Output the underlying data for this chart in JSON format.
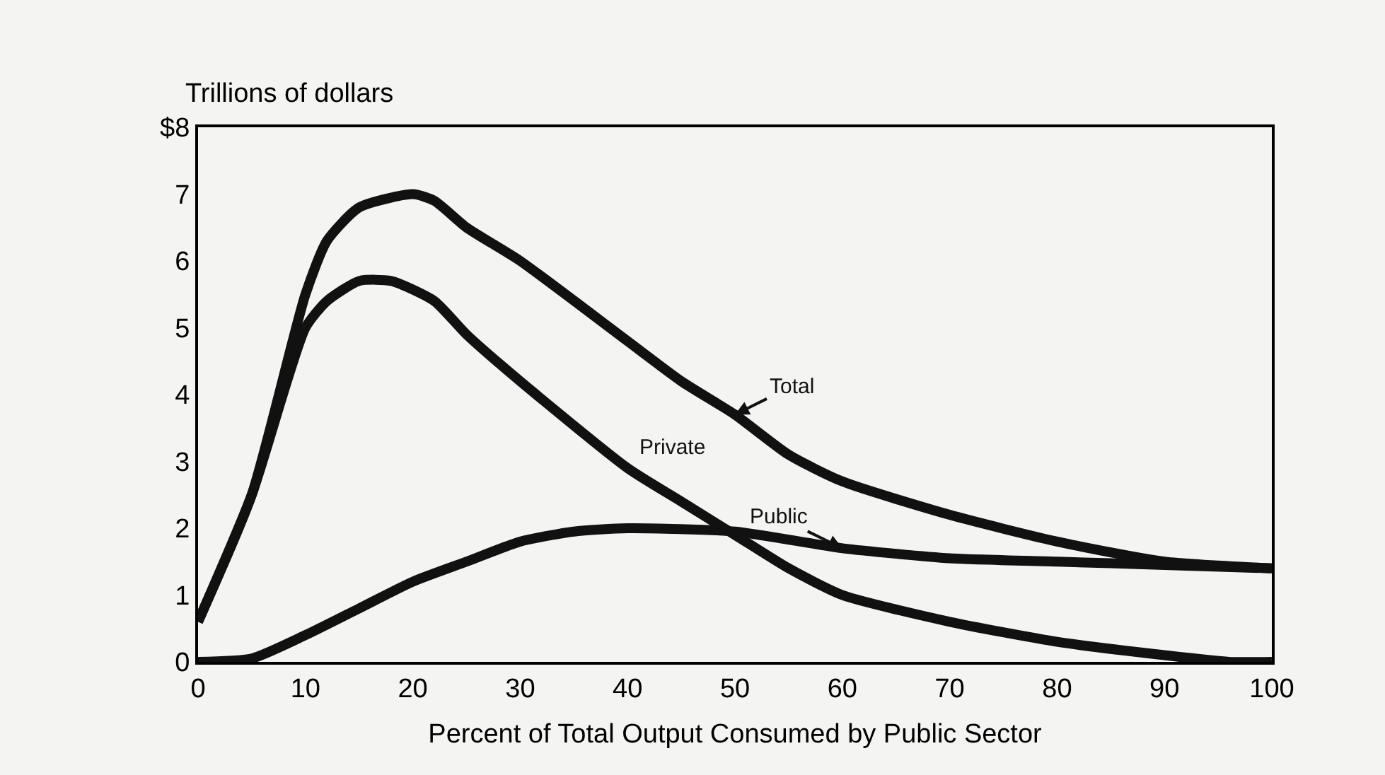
{
  "chart_data": {
    "type": "line",
    "xlabel": "Percent of Total Output Consumed by Public Sector",
    "ylabel": "Trillions of dollars",
    "series": [
      {
        "name": "Total",
        "color": "#111111",
        "x": [
          0,
          5,
          10,
          12,
          15,
          20,
          22,
          25,
          30,
          40,
          45,
          50,
          55,
          60,
          70,
          80,
          90,
          100
        ],
        "values": [
          0.6,
          2.5,
          5.5,
          6.3,
          6.8,
          7.0,
          6.9,
          6.5,
          6.0,
          4.8,
          4.2,
          3.7,
          3.1,
          2.7,
          2.2,
          1.8,
          1.5,
          1.4
        ]
      },
      {
        "name": "Private",
        "color": "#111111",
        "x": [
          0,
          5,
          10,
          12,
          15,
          18,
          22,
          25,
          30,
          40,
          45,
          50,
          55,
          60,
          70,
          80,
          90,
          96,
          100
        ],
        "values": [
          0.6,
          2.5,
          5.0,
          5.4,
          5.7,
          5.7,
          5.4,
          4.9,
          4.2,
          2.9,
          2.4,
          1.9,
          1.4,
          1.0,
          0.6,
          0.3,
          0.1,
          0,
          0
        ]
      },
      {
        "name": "Public",
        "color": "#111111",
        "x": [
          0,
          5,
          10,
          15,
          20,
          25,
          30,
          35,
          40,
          50,
          60,
          70,
          80,
          90,
          100
        ],
        "values": [
          0,
          0.05,
          0.4,
          0.8,
          1.2,
          1.5,
          1.8,
          1.95,
          2.0,
          1.95,
          1.7,
          1.55,
          1.5,
          1.45,
          1.4
        ]
      }
    ],
    "xlim": [
      0,
      100
    ],
    "xticks": [
      0,
      10,
      20,
      30,
      40,
      50,
      60,
      70,
      80,
      90,
      100
    ],
    "ylim": [
      0,
      8
    ],
    "yticks": [
      0,
      1,
      2,
      3,
      4,
      5,
      6,
      7,
      {
        "value": 8,
        "label": "$8"
      }
    ],
    "grid": false,
    "legend": false,
    "marker": "none",
    "line_style": "solid"
  }
}
